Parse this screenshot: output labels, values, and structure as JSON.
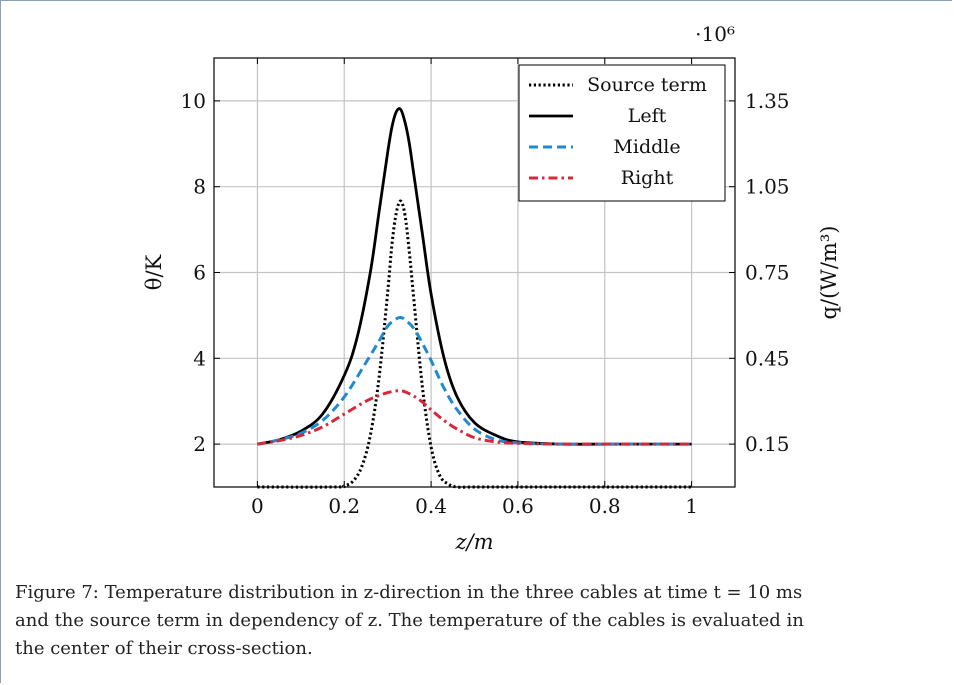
{
  "chart_data": {
    "type": "line",
    "title": "",
    "xlabel": "z/m",
    "ylabel_left": "θ/K",
    "ylabel_right": "q/(W/m³)",
    "right_axis_multiplier": "·10⁶",
    "xlim": [
      -0.1,
      1.1
    ],
    "ylim_left": [
      1,
      11
    ],
    "ylim_right": [
      0.0,
      1.5
    ],
    "x_ticks": [
      "0",
      "0.2",
      "0.4",
      "0.6",
      "0.8",
      "1"
    ],
    "y_ticks_left": [
      "2",
      "4",
      "6",
      "8",
      "10"
    ],
    "y_ticks_right": [
      "0.15",
      "0.45",
      "0.75",
      "1.05",
      "1.35"
    ],
    "grid": true,
    "legend_position": "top-right",
    "series": [
      {
        "name": "Source term",
        "axis": "right",
        "style": "dotted",
        "color": "#000000",
        "x": [
          0,
          0.18,
          0.2,
          0.22,
          0.24,
          0.26,
          0.28,
          0.3,
          0.31,
          0.32,
          0.33,
          0.34,
          0.35,
          0.36,
          0.38,
          0.4,
          0.42,
          0.44,
          0.46,
          0.5,
          0.6,
          0.8,
          1.0
        ],
        "values": [
          0.0,
          0.0,
          0.004,
          0.02,
          0.07,
          0.18,
          0.38,
          0.68,
          0.85,
          0.96,
          1.0,
          0.95,
          0.82,
          0.66,
          0.35,
          0.14,
          0.04,
          0.01,
          0.0,
          0.0,
          0.0,
          0.0,
          0.0
        ]
      },
      {
        "name": "Left",
        "axis": "left",
        "style": "solid",
        "color": "#000000",
        "x": [
          0,
          0.05,
          0.1,
          0.15,
          0.2,
          0.23,
          0.26,
          0.28,
          0.3,
          0.31,
          0.32,
          0.33,
          0.34,
          0.35,
          0.36,
          0.38,
          0.4,
          0.43,
          0.46,
          0.5,
          0.55,
          0.6,
          0.7,
          0.8,
          1.0
        ],
        "values": [
          2.0,
          2.1,
          2.3,
          2.7,
          3.6,
          4.5,
          6.0,
          7.4,
          8.8,
          9.4,
          9.75,
          9.8,
          9.5,
          9.0,
          8.3,
          6.9,
          5.5,
          4.0,
          3.1,
          2.5,
          2.2,
          2.05,
          2.0,
          2.0,
          2.0
        ]
      },
      {
        "name": "Middle",
        "axis": "left",
        "style": "dashed",
        "color": "#1f8ad0",
        "x": [
          0,
          0.05,
          0.1,
          0.15,
          0.2,
          0.25,
          0.28,
          0.3,
          0.32,
          0.33,
          0.34,
          0.36,
          0.38,
          0.4,
          0.43,
          0.46,
          0.5,
          0.55,
          0.6,
          0.7,
          1.0
        ],
        "values": [
          2.0,
          2.1,
          2.25,
          2.55,
          3.1,
          3.9,
          4.4,
          4.75,
          4.92,
          4.95,
          4.9,
          4.7,
          4.35,
          3.95,
          3.3,
          2.8,
          2.35,
          2.1,
          2.03,
          2.0,
          2.0
        ]
      },
      {
        "name": "Right",
        "axis": "left",
        "style": "dashdot",
        "color": "#d6283b",
        "x": [
          0,
          0.05,
          0.1,
          0.15,
          0.2,
          0.25,
          0.28,
          0.3,
          0.32,
          0.33,
          0.34,
          0.36,
          0.38,
          0.4,
          0.43,
          0.46,
          0.5,
          0.55,
          0.6,
          0.7,
          1.0
        ],
        "values": [
          2.0,
          2.08,
          2.2,
          2.4,
          2.7,
          3.0,
          3.13,
          3.2,
          3.24,
          3.24,
          3.22,
          3.12,
          2.98,
          2.8,
          2.55,
          2.35,
          2.15,
          2.05,
          2.02,
          2.0,
          2.0
        ]
      }
    ]
  },
  "caption": {
    "lines": [
      "Figure 7: Temperature distribution in z-direction in the three cables at time t = 10 ms",
      "and the source term in dependency of z. The temperature of the cables is evaluated in",
      "the center of their cross-section."
    ]
  }
}
